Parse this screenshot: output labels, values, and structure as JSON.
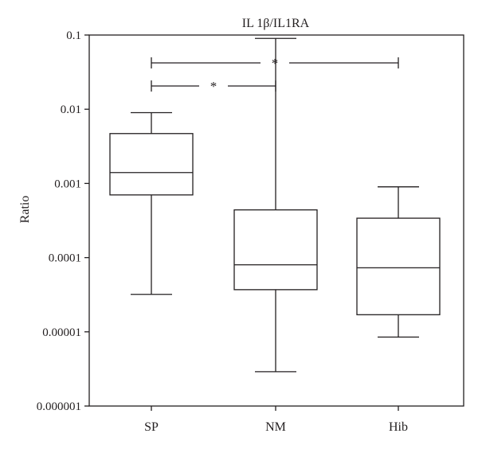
{
  "chart_data": {
    "type": "box",
    "title": "IL 1β/IL1RA",
    "ylabel": "Ratio",
    "xlabel": "",
    "yscale": "log",
    "ylim": [
      1e-06,
      0.1
    ],
    "y_ticks": [
      {
        "value": 0.1,
        "label": "0.1"
      },
      {
        "value": 0.01,
        "label": "0.01"
      },
      {
        "value": 0.001,
        "label": "0.001"
      },
      {
        "value": 0.0001,
        "label": "0.0001"
      },
      {
        "value": 1e-05,
        "label": "0.00001"
      },
      {
        "value": 1e-06,
        "label": "0.000001"
      }
    ],
    "categories": [
      "SP",
      "NM",
      "Hib"
    ],
    "boxes": [
      {
        "category": "SP",
        "min": 3.2e-05,
        "q1": 0.0007,
        "median": 0.0014,
        "q3": 0.0047,
        "max": 0.009
      },
      {
        "category": "NM",
        "min": 2.9e-06,
        "q1": 3.7e-05,
        "median": 8e-05,
        "q3": 0.00044,
        "max": 0.09
      },
      {
        "category": "Hib",
        "min": 8.5e-06,
        "q1": 1.7e-05,
        "median": 7.3e-05,
        "q3": 0.00034,
        "max": 0.0009
      }
    ],
    "significance": [
      {
        "from": "SP",
        "to": "NM",
        "label": "*"
      },
      {
        "from": "SP",
        "to": "Hib",
        "label": "*"
      }
    ],
    "grid": false,
    "legend": "none"
  }
}
